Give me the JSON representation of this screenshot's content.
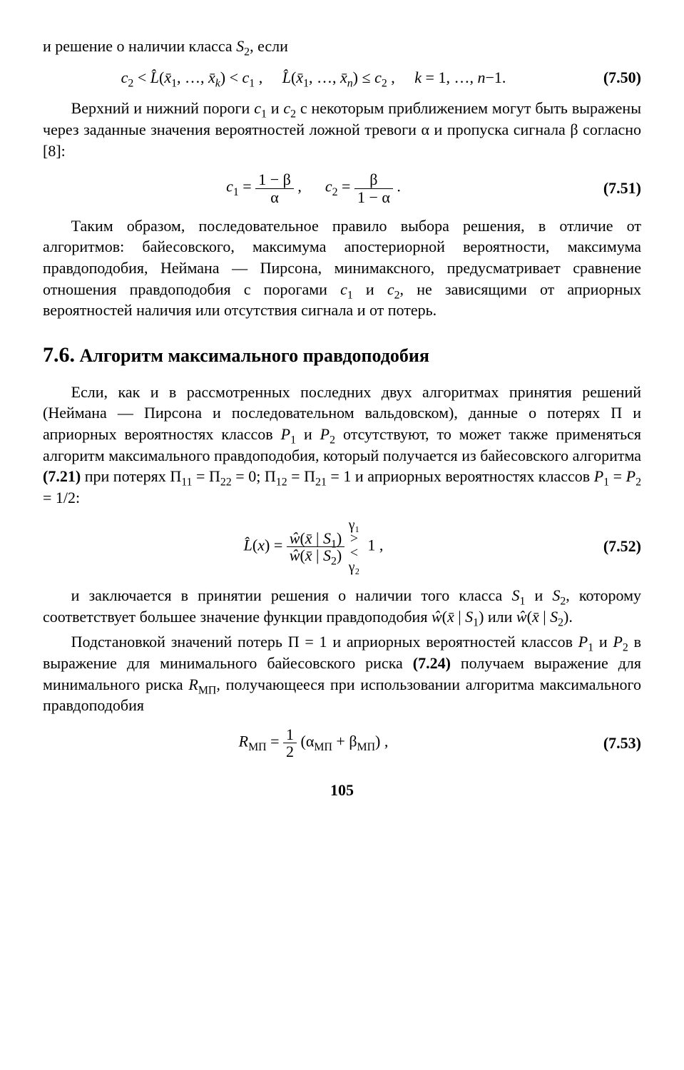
{
  "page_number": "105",
  "intro_line": "и решение о наличии класса S₂, если",
  "eq750": {
    "text": "c₂ < L̂(x̄₁, …, x̄ₖ) < c₁ ,    L̂(x̄₁, …, x̄ₙ) ≤ c₂ ,    k = 1, …, n−1.",
    "num": "(7.50)"
  },
  "para1": "Верхний и нижний пороги c₁ и c₂ с некоторым приближением могут быть выражены через заданные значения вероятностей ложной тревоги α и пропуска сигнала β согласно [8]:",
  "eq751": {
    "c1_num": "1 − β",
    "c1_den": "α",
    "c2_num": "β",
    "c2_den": "1 − α",
    "num": "(7.51)"
  },
  "para2": "Таким образом, последовательное правило выбора решения, в отличие от алгоритмов: байесовского, максимума апостериорной вероятности, максимума правдоподобия, Неймана — Пирсона, минимаксного, предусматривает сравнение отношения правдоподобия с порогами c₁ и c₂, не зависящими от априорных вероятностей наличия или отсутствия сигнала и от потерь.",
  "heading": {
    "no": "7.6.",
    "title": "Алгоритм максимального правдоподобия"
  },
  "para3": "Если, как и в рассмотренных последних двух алгоритмах принятия решений (Неймана — Пирсона и последовательном вальдовском), данные о потерях Π и априорных вероятностях классов P₁ и P₂ отсутствуют, то может также применяться алгоритм максимального правдоподобия, который получается из байесовского алгоритма (7.21) при потерях Π₁₁ = Π₂₂ = 0; Π₁₂ = Π₂₁ = 1 и априорных вероятностях классов P₁ = P₂ = 1/2:",
  "eq752": {
    "lhs": "L̂(x) =",
    "frac_num": "ŵ(x̄ | S₁)",
    "frac_den": "ŵ(x̄ | S₂)",
    "top": "γ₁",
    "mid_gt": ">",
    "mid_lt": "<",
    "rhs": "1 ,",
    "bot": "γ₂",
    "num": "(7.52)"
  },
  "para4": "и заключается в принятии решения о наличии того класса S₁ и S₂, которому соответствует большее значение функции правдоподобия ŵ(x̄ | S₁) или ŵ(x̄ | S₂).",
  "para5": "Подстановкой значений потерь Π = 1 и априорных вероятностей классов P₁ и P₂ в выражение для минимального байесовского риска (7.24) получаем выражение для минимального риска Rₘₚ, получающееся при использовании алгоритма максимального правдоподобия",
  "eq753": {
    "lhs": "Rₘₚ =",
    "frac_num": "1",
    "frac_den": "2",
    "rhs": "(αₘₚ + βₘₚ) ,",
    "num": "(7.53)"
  },
  "subscript_mp": "МП"
}
